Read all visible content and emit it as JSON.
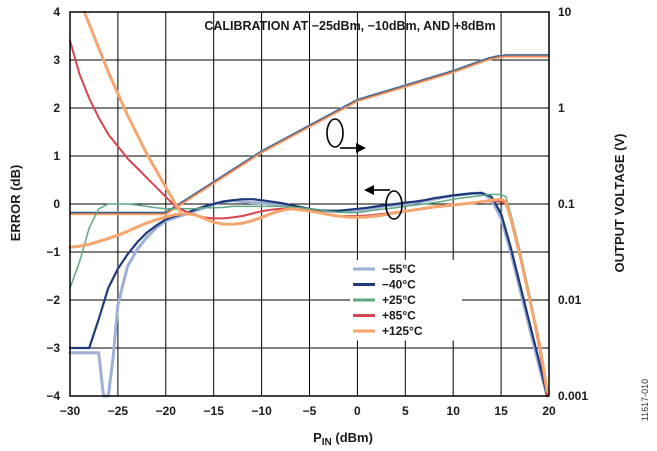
{
  "chart_data": {
    "type": "line",
    "title": "CALIBRATION AT −25dBm, −10dBm, AND +8dBm",
    "xlabel_main": "P",
    "xlabel_sub": "IN",
    "xlabel_unit": " (dBm)",
    "ylabel_left": "ERROR (dB)",
    "ylabel_right": "OUTPUT VOLTAGE (V)",
    "figure_id": "11617-010",
    "xlim": [
      -30,
      20
    ],
    "ylim_left": [
      -4,
      4
    ],
    "ylim_right_log": [
      0.001,
      10
    ],
    "x_ticks": [
      "−30",
      "−25",
      "−20",
      "−15",
      "−10",
      "−5",
      "0",
      "5",
      "10",
      "15",
      "20"
    ],
    "y_ticks_left": [
      "4",
      "3",
      "2",
      "1",
      "0",
      "−1",
      "−2",
      "−3",
      "−4"
    ],
    "y_ticks_right": [
      "10",
      "1",
      "0.1",
      "0.01",
      "0.001"
    ],
    "grid": true,
    "legend_position": "lower-center",
    "error_series": [
      {
        "name": "−55°C",
        "color": "#9fb0d6",
        "width": 3,
        "x": [
          -30,
          -28,
          -27,
          -26.5,
          -26,
          -25.5,
          -25,
          -24,
          -23,
          -22,
          -21,
          -20,
          -19,
          -18,
          -17,
          -16,
          -15,
          -14,
          -13,
          -12,
          -11,
          -10,
          -9,
          -8,
          -7,
          -6,
          -5,
          -4,
          -3,
          -2,
          -1,
          0,
          1,
          2,
          3,
          4,
          5,
          6,
          7,
          8,
          9,
          10,
          11,
          12,
          13,
          14,
          15,
          16,
          17,
          18,
          19,
          19.8
        ],
        "y": [
          -3.1,
          -3.1,
          -3.1,
          -4.0,
          -4.0,
          -3.2,
          -2.1,
          -1.3,
          -0.95,
          -0.7,
          -0.5,
          -0.35,
          -0.28,
          -0.22,
          -0.15,
          -0.08,
          0.0,
          0.05,
          0.07,
          0.05,
          0.03,
          0.02,
          0.0,
          -0.03,
          -0.07,
          -0.1,
          -0.12,
          -0.14,
          -0.15,
          -0.15,
          -0.14,
          -0.13,
          -0.1,
          -0.07,
          -0.04,
          -0.02,
          0.0,
          0.03,
          0.06,
          0.1,
          0.14,
          0.17,
          0.2,
          0.22,
          0.23,
          0.1,
          -0.3,
          -1.0,
          -1.8,
          -2.6,
          -3.4,
          -4.0
        ]
      },
      {
        "name": "−40°C",
        "color": "#1f3a7a",
        "width": 2.2,
        "x": [
          -30,
          -28,
          -27,
          -26,
          -25,
          -24,
          -23,
          -22,
          -21,
          -20,
          -19,
          -18,
          -17,
          -16,
          -15,
          -14,
          -13,
          -12,
          -11,
          -10,
          -9,
          -8,
          -7,
          -6,
          -5,
          -4,
          -3,
          -2,
          -1,
          0,
          1,
          2,
          3,
          4,
          5,
          6,
          7,
          8,
          9,
          10,
          11,
          12,
          13,
          14,
          15,
          16,
          17,
          18,
          19,
          19.8
        ],
        "y": [
          -3.0,
          -3.0,
          -2.4,
          -1.75,
          -1.35,
          -1.05,
          -0.8,
          -0.6,
          -0.45,
          -0.32,
          -0.25,
          -0.2,
          -0.12,
          -0.05,
          0.0,
          0.05,
          0.08,
          0.1,
          0.1,
          0.08,
          0.05,
          0.02,
          -0.02,
          -0.06,
          -0.1,
          -0.13,
          -0.14,
          -0.14,
          -0.12,
          -0.1,
          -0.08,
          -0.05,
          -0.02,
          0.0,
          0.03,
          0.05,
          0.08,
          0.12,
          0.15,
          0.18,
          0.2,
          0.22,
          0.23,
          0.15,
          -0.2,
          -0.9,
          -1.7,
          -2.5,
          -3.3,
          -4.0
        ]
      },
      {
        "name": "+25°C",
        "color": "#5fa882",
        "width": 1.5,
        "x": [
          -30,
          -29,
          -28,
          -27,
          -26,
          -25,
          -24,
          -23,
          -22,
          -21,
          -20,
          -19,
          -18,
          -17,
          -16,
          -15,
          -14,
          -13,
          -12,
          -11,
          -10,
          -9,
          -8,
          -7,
          -6,
          -5,
          -4,
          -3,
          -2,
          -1,
          0,
          1,
          2,
          3,
          4,
          5,
          6,
          7,
          8,
          9,
          10,
          11,
          12,
          13,
          14,
          15,
          15.5,
          16,
          17,
          18,
          19,
          19.8
        ],
        "y": [
          -1.75,
          -1.2,
          -0.5,
          -0.1,
          0.0,
          0.0,
          0.0,
          -0.02,
          -0.05,
          -0.08,
          -0.1,
          -0.1,
          -0.1,
          -0.1,
          -0.08,
          -0.08,
          -0.07,
          -0.05,
          -0.05,
          -0.05,
          -0.05,
          -0.05,
          -0.05,
          -0.06,
          -0.08,
          -0.1,
          -0.12,
          -0.15,
          -0.17,
          -0.18,
          -0.18,
          -0.15,
          -0.12,
          -0.1,
          -0.08,
          -0.05,
          -0.02,
          0.0,
          0.03,
          0.06,
          0.1,
          0.13,
          0.15,
          0.18,
          0.2,
          0.2,
          0.15,
          -0.2,
          -1.0,
          -1.9,
          -2.9,
          -3.9
        ]
      },
      {
        "name": "+85°C",
        "color": "#d9444f",
        "width": 2,
        "x": [
          -30,
          -29,
          -28,
          -27,
          -26,
          -25,
          -24,
          -23,
          -22,
          -21,
          -20,
          -19,
          -18,
          -17,
          -16,
          -15,
          -14,
          -13,
          -12,
          -11,
          -10,
          -9,
          -8,
          -7,
          -6,
          -5,
          -4,
          -3,
          -2,
          -1,
          0,
          1,
          2,
          3,
          4,
          5,
          6,
          7,
          8,
          9,
          10,
          11,
          12,
          13,
          14,
          15,
          15.5,
          16,
          17,
          18,
          19,
          19.8
        ],
        "y": [
          3.4,
          2.7,
          2.2,
          1.8,
          1.45,
          1.2,
          0.95,
          0.75,
          0.55,
          0.35,
          0.15,
          -0.05,
          -0.15,
          -0.22,
          -0.28,
          -0.3,
          -0.3,
          -0.28,
          -0.25,
          -0.2,
          -0.15,
          -0.12,
          -0.1,
          -0.1,
          -0.12,
          -0.15,
          -0.18,
          -0.22,
          -0.25,
          -0.25,
          -0.25,
          -0.24,
          -0.22,
          -0.2,
          -0.17,
          -0.15,
          -0.12,
          -0.1,
          -0.07,
          -0.05,
          -0.02,
          0.0,
          0.03,
          0.05,
          0.06,
          0.05,
          0.0,
          -0.3,
          -1.1,
          -2.0,
          -3.0,
          -4.0
        ]
      },
      {
        "name": "+125°C",
        "color": "#f5a56e",
        "width": 3,
        "x": [
          -30,
          -29,
          -28,
          -27,
          -26,
          -25,
          -24,
          -23,
          -22,
          -21,
          -20,
          -19,
          -18,
          -17,
          -16,
          -15,
          -14,
          -13,
          -12,
          -11,
          -10,
          -9,
          -8,
          -7,
          -6,
          -5,
          -4,
          -3,
          -2,
          -1,
          0,
          1,
          2,
          3,
          4,
          5,
          6,
          7,
          8,
          9,
          10,
          11,
          12,
          13,
          14,
          15,
          15.5,
          16,
          17,
          18,
          19,
          19.8
        ],
        "y": [
          -0.9,
          -0.88,
          -0.84,
          -0.78,
          -0.72,
          -0.65,
          -0.57,
          -0.48,
          -0.4,
          -0.33,
          -0.27,
          -0.22,
          -0.2,
          -0.22,
          -0.3,
          -0.38,
          -0.42,
          -0.42,
          -0.4,
          -0.35,
          -0.28,
          -0.2,
          -0.14,
          -0.1,
          -0.12,
          -0.15,
          -0.18,
          -0.22,
          -0.25,
          -0.27,
          -0.28,
          -0.27,
          -0.25,
          -0.22,
          -0.18,
          -0.15,
          -0.12,
          -0.09,
          -0.06,
          -0.04,
          -0.02,
          0.0,
          0.02,
          0.05,
          0.08,
          0.1,
          0.05,
          -0.3,
          -1.1,
          -2.0,
          -2.9,
          -3.9
        ]
      },
      {
        "name": "+125°C",
        "color": "#f5a56e",
        "width": 3,
        "x": [
          -28.5,
          -28,
          -27,
          -26,
          -25,
          -24,
          -23,
          -22,
          -21,
          -20,
          -19,
          -18.5
        ],
        "y": [
          4.0,
          3.75,
          3.25,
          2.75,
          2.3,
          1.85,
          1.45,
          1.05,
          0.7,
          0.35,
          0.0,
          -0.15
        ]
      }
    ],
    "output_voltage_series": {
      "name": "OUTPUT VOLTAGE",
      "colors": [
        "#9fb0d6",
        "#1f3a7a",
        "#5fa882",
        "#d9444f",
        "#f5a56e"
      ],
      "x": [
        -30,
        -20,
        -10,
        0,
        10,
        13.5,
        14.5,
        15.5,
        20
      ],
      "y_volts": [
        0.08,
        0.08,
        0.35,
        1.2,
        2.4,
        3.2,
        3.4,
        3.5,
        3.5
      ]
    },
    "legend": [
      "−55°C",
      "−40°C",
      "+25°C",
      "+85°C",
      "+125°C"
    ]
  }
}
